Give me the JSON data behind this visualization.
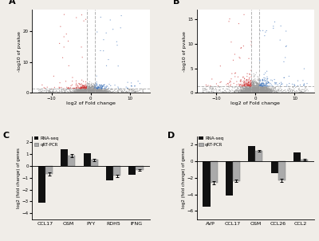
{
  "panel_A_label": "A",
  "panel_B_label": "B",
  "panel_C_label": "C",
  "panel_D_label": "D",
  "volcano_xlim": [
    -15,
    15
  ],
  "volcano_A_ylim": [
    0,
    27
  ],
  "volcano_B_ylim": [
    0,
    17
  ],
  "volcano_xlabel": "log2 of Fold change",
  "volcano_ylabel": "-log10 of pvalue",
  "volcano_up_color": "#4477bb",
  "volcano_down_color": "#cc3333",
  "volcano_no_color": "#999999",
  "volcano_fc_thresh": 1.0,
  "volcano_p_thresh": 1.3,
  "bar_C_categories": [
    "CCL17",
    "OSM",
    "PYY",
    "RDH5",
    "IFNG"
  ],
  "bar_C_rnaseq": [
    -3.1,
    1.4,
    1.05,
    -1.25,
    -0.75
  ],
  "bar_C_qrtpcr": [
    -0.7,
    0.85,
    0.5,
    -0.85,
    -0.35
  ],
  "bar_C_qrtpcr_err": [
    0.15,
    0.12,
    0.08,
    0.1,
    0.08
  ],
  "bar_D_categories": [
    "AVP",
    "CCL17",
    "OSM",
    "CCL26",
    "CCL2"
  ],
  "bar_D_rnaseq": [
    -5.5,
    -4.1,
    1.85,
    -1.5,
    1.0
  ],
  "bar_D_qrtpcr": [
    -2.6,
    -2.4,
    1.25,
    -2.3,
    0.15
  ],
  "bar_D_qrtpcr_err": [
    0.2,
    0.15,
    0.12,
    0.2,
    0.08
  ],
  "bar_C_ylim": [
    -4.5,
    2.5
  ],
  "bar_D_ylim": [
    -7,
    3
  ],
  "bar_ylabel": "log2 (fold change) of genes",
  "bar_rnaseq_color": "#111111",
  "bar_qrtpcr_color": "#aaaaaa",
  "background_color": "#f0ede8",
  "plot_bg_color": "#ffffff"
}
